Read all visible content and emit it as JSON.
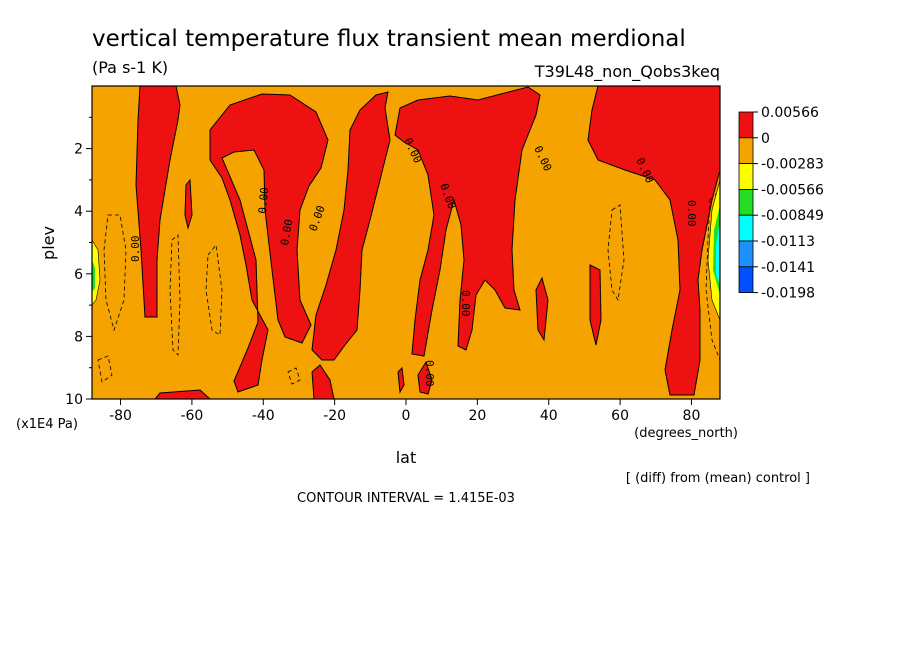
{
  "chart_data": {
    "type": "heatmap",
    "title": "vertical temperature flux transient mean merdional",
    "units": "(Pa s-1 K)",
    "experiment": "T39L48_non_Qobs3keq",
    "xlabel": "lat",
    "x_units": "(degrees_north)",
    "ylabel": "plev",
    "y_units": "(x1E4 Pa)",
    "xlim": [
      -88,
      88
    ],
    "ylim": [
      10,
      0
    ],
    "x_ticks": [
      -80,
      -60,
      -40,
      -20,
      0,
      20,
      40,
      60,
      80
    ],
    "x_tick_labels": [
      "-80",
      "-60",
      "-40",
      "-20",
      "0",
      "20",
      "40",
      "60",
      "80"
    ],
    "y_ticks": [
      2,
      4,
      6,
      8,
      10
    ],
    "y_tick_labels": [
      "2",
      "4",
      "6",
      "8",
      "10"
    ],
    "colorbar": {
      "labels": [
        "0.00566",
        "0",
        "-0.00283",
        "-0.00566",
        "-0.00849",
        "-0.0113",
        "-0.0141",
        "-0.0198"
      ],
      "colors": [
        "#ee1111",
        "#f5a300",
        "#ffff00",
        "#22dd22",
        "#00ffff",
        "#1e90ff",
        "#0050ff"
      ]
    },
    "contour_label": "0.00",
    "contour_interval_label": "CONTOUR INTERVAL = 1.415E-03",
    "note": "[ (diff) from (mean) control ]",
    "background_color": "#f5a300",
    "positive_color": "#ee1111",
    "positive_regions": [
      {
        "name": "lat-74-column",
        "lat_center": -73,
        "plev_top": 0,
        "plev_bottom": 7.3
      },
      {
        "name": "lat-33-arch",
        "lat_center": -33,
        "plev_top": 0.7,
        "plev_bottom": 9.3
      },
      {
        "name": "lat-10-plume",
        "lat_center": -12,
        "plev_top": 0,
        "plev_bottom": 9.2
      },
      {
        "name": "lat-25-arch",
        "lat_center": 25,
        "plev_top": 0.3,
        "plev_bottom": 8.6
      },
      {
        "name": "lat-75-column",
        "lat_center": 75,
        "plev_top": 0,
        "plev_bottom": 10
      }
    ]
  }
}
